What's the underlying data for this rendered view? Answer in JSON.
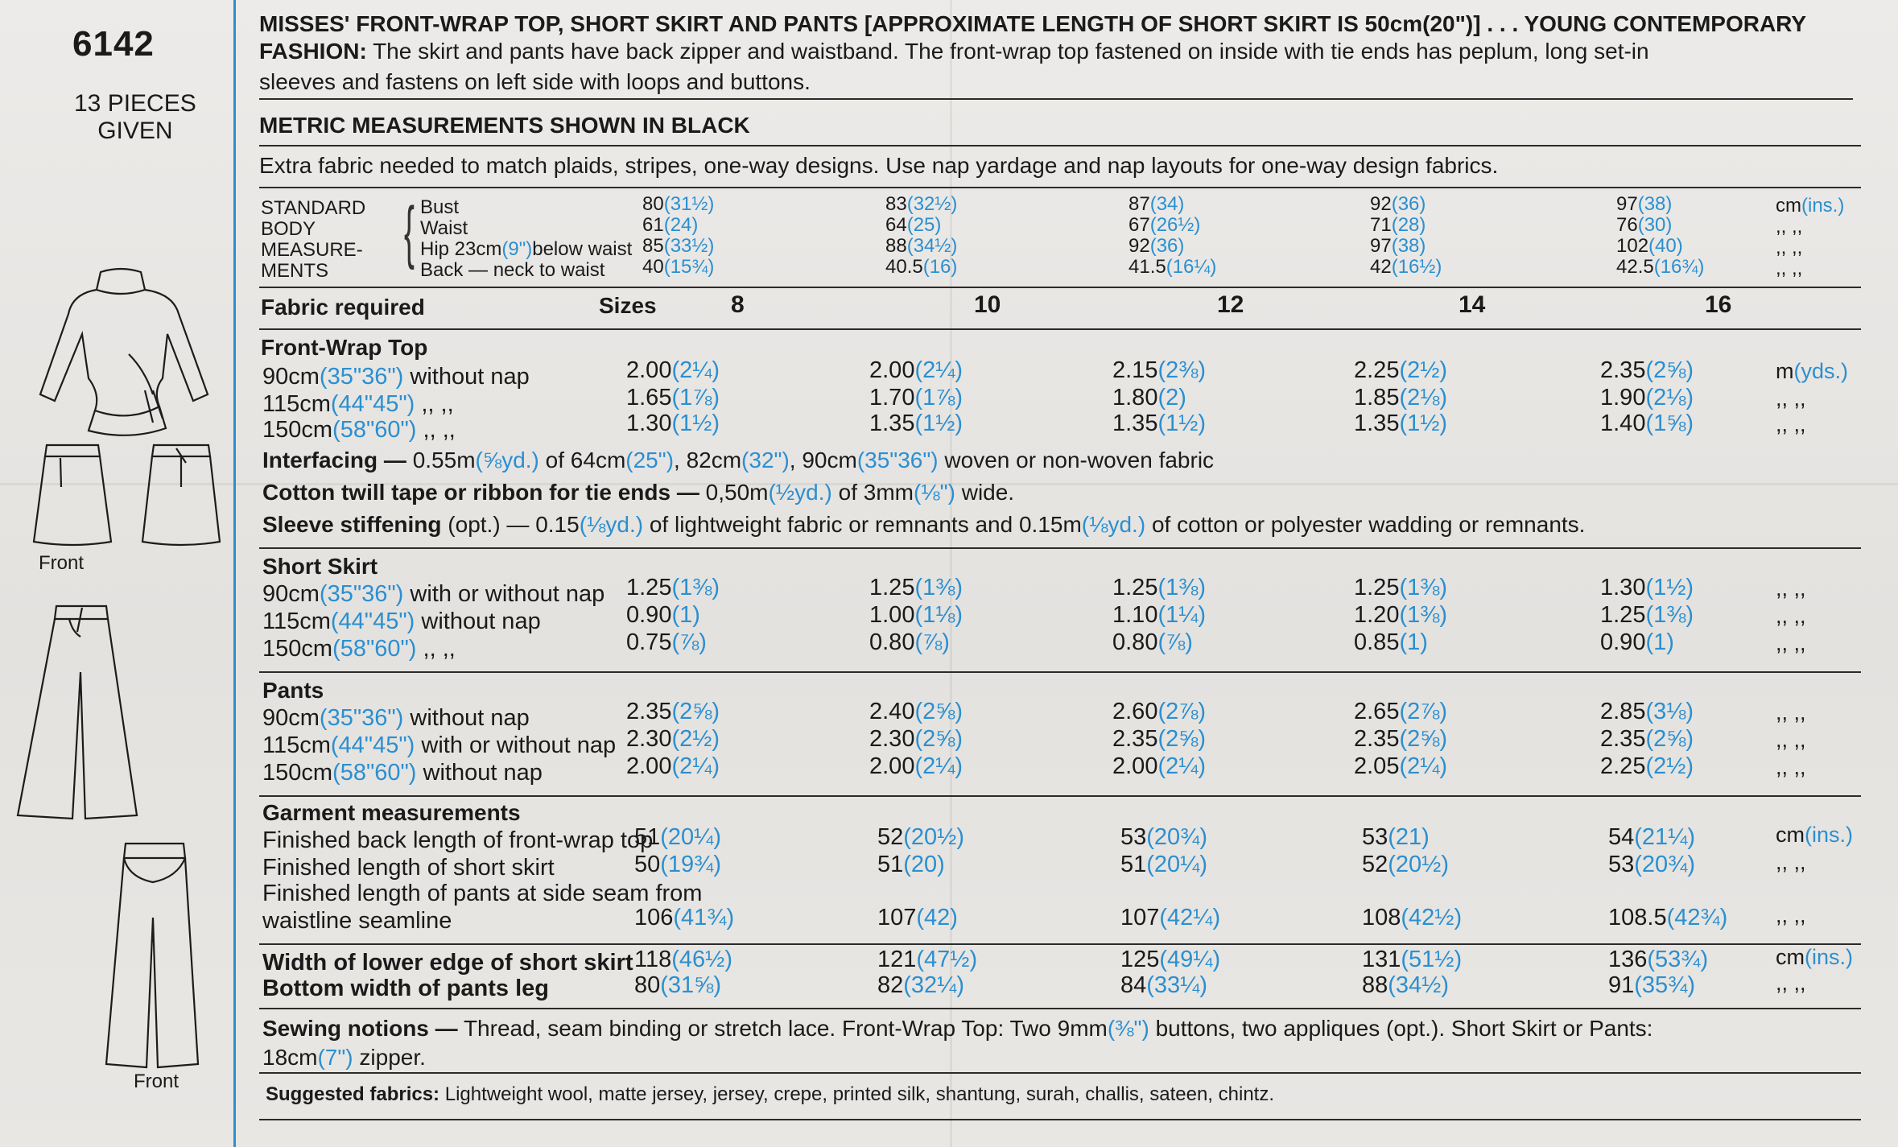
{
  "header": {
    "pattern_number": "6142",
    "pieces_line1": "13 PIECES",
    "pieces_line2": "GIVEN",
    "front_label_1": "Front",
    "front_label_2": "Front"
  },
  "description": {
    "title": "MISSES' FRONT-WRAP TOP, SHORT SKIRT AND PANTS [APPROXIMATE LENGTH OF SHORT SKIRT IS 50cm(20\")] . . . YOUNG CONTEMPORARY",
    "fashion_label": "FASHION:",
    "fashion_text": "The skirt and pants have back zipper and waistband. The front-wrap top fastened on inside with tie ends has peplum, long set-in",
    "fashion_text2": "sleeves and fastens on left side with loops and buttons.",
    "metric_note": "METRIC MEASUREMENTS SHOWN IN BLACK",
    "extra_fabric": "Extra fabric needed to match plaids, stripes, one-way designs. Use nap yardage and nap layouts for one-way design fabrics."
  },
  "body_measurements": {
    "label_lines": [
      "STANDARD",
      "BODY",
      "MEASURE-",
      "MENTS"
    ],
    "rows": [
      {
        "label": "Bust",
        "values": [
          [
            "80",
            "(31½)"
          ],
          [
            "83",
            "(32½)"
          ],
          [
            "87",
            "(34)"
          ],
          [
            "92",
            "(36)"
          ],
          [
            "97",
            "(38)"
          ]
        ],
        "unit": "cm",
        "unit_alt": "(ins.)"
      },
      {
        "label": "Waist",
        "values": [
          [
            "61",
            "(24)"
          ],
          [
            "64",
            "(25)"
          ],
          [
            "67",
            "(26½)"
          ],
          [
            "71",
            "(28)"
          ],
          [
            "76",
            "(30)"
          ]
        ],
        "unit": ",,  ,,",
        "unit_alt": ""
      },
      {
        "label": "Hip 23cm",
        "label_alt": "(9\")",
        "label_rest": "below waist",
        "values": [
          [
            "85",
            "(33½)"
          ],
          [
            "88",
            "(34½)"
          ],
          [
            "92",
            "(36)"
          ],
          [
            "97",
            "(38)"
          ],
          [
            "102",
            "(40)"
          ]
        ],
        "unit": ",,  ,,",
        "unit_alt": ""
      },
      {
        "label": "Back — neck to waist",
        "values": [
          [
            "40",
            "(15¾)"
          ],
          [
            "40.5",
            "(16)"
          ],
          [
            "41.5",
            "(16¼)"
          ],
          [
            "42",
            "(16½)"
          ],
          [
            "42.5",
            "(16¾)"
          ]
        ],
        "unit": ",,  ,,",
        "unit_alt": ""
      }
    ]
  },
  "sizes_header": {
    "fabric_required": "Fabric required",
    "sizes": "Sizes",
    "values": [
      "8",
      "10",
      "12",
      "14",
      "16"
    ]
  },
  "front_wrap_top": {
    "title": "Front-Wrap Top",
    "rows": [
      {
        "w": "90cm",
        "w_alt": "(35\"36\")",
        "nap": "without nap",
        "values": [
          [
            "2.00",
            "(2¼)"
          ],
          [
            "2.00",
            "(2¼)"
          ],
          [
            "2.15",
            "(2⅜)"
          ],
          [
            "2.25",
            "(2½)"
          ],
          [
            "2.35",
            "(2⅝)"
          ]
        ],
        "unit": "m",
        "unit_alt": "(yds.)"
      },
      {
        "w": "115cm",
        "w_alt": "(44\"45\")",
        "nap": ",,        ,,",
        "values": [
          [
            "1.65",
            "(1⅞)"
          ],
          [
            "1.70",
            "(1⅞)"
          ],
          [
            "1.80",
            "(2)"
          ],
          [
            "1.85",
            "(2⅛)"
          ],
          [
            "1.90",
            "(2⅛)"
          ]
        ],
        "unit": ",,  ,,",
        "unit_alt": ""
      },
      {
        "w": "150cm",
        "w_alt": "(58\"60\")",
        "nap": ",,        ,,",
        "values": [
          [
            "1.30",
            "(1½)"
          ],
          [
            "1.35",
            "(1½)"
          ],
          [
            "1.35",
            "(1½)"
          ],
          [
            "1.35",
            "(1½)"
          ],
          [
            "1.40",
            "(1⅝)"
          ]
        ],
        "unit": ",,  ,,",
        "unit_alt": ""
      }
    ]
  },
  "notes": {
    "interfacing_label": "Interfacing —",
    "interfacing_text": "0.55m",
    "interfacing_alt": "(⅝yd.)",
    "interfacing_rest": "of 64cm",
    "interfacing_alt2": "(25\")",
    "interfacing_rest2": ", 82cm",
    "interfacing_alt3": "(32\")",
    "interfacing_rest3": ", 90cm",
    "interfacing_alt4": "(35\"36\")",
    "interfacing_rest4": "woven or non-woven fabric",
    "cotton_label": "Cotton twill tape or ribbon for tie ends —",
    "cotton_text": "0,50m",
    "cotton_alt": "(½yd.)",
    "cotton_rest": "of 3mm",
    "cotton_alt2": "(⅛\")",
    "cotton_rest2": "wide.",
    "sleeve_label": "Sleeve stiffening",
    "sleeve_text": "(opt.) — 0.15",
    "sleeve_alt": "(⅛yd.)",
    "sleeve_rest": "of lightweight fabric or remnants and 0.15m",
    "sleeve_alt2": "(⅛yd.)",
    "sleeve_rest2": "of cotton or polyester wadding or remnants."
  },
  "short_skirt": {
    "title": "Short Skirt",
    "rows": [
      {
        "w": "90cm",
        "w_alt": "(35\"36\")",
        "nap": "with or without nap",
        "values": [
          [
            "1.25",
            "(1⅜)"
          ],
          [
            "1.25",
            "(1⅜)"
          ],
          [
            "1.25",
            "(1⅜)"
          ],
          [
            "1.25",
            "(1⅜)"
          ],
          [
            "1.30",
            "(1½)"
          ]
        ],
        "unit": ",,  ,,"
      },
      {
        "w": "115cm",
        "w_alt": "(44\"45\")",
        "nap": "without nap",
        "values": [
          [
            "0.90",
            "(1)"
          ],
          [
            "1.00",
            "(1⅛)"
          ],
          [
            "1.10",
            "(1¼)"
          ],
          [
            "1.20",
            "(1⅜)"
          ],
          [
            "1.25",
            "(1⅜)"
          ]
        ],
        "unit": ",,  ,,"
      },
      {
        "w": "150cm",
        "w_alt": "(58\"60\")",
        "nap": ",,        ,,",
        "values": [
          [
            "0.75",
            "(⅞)"
          ],
          [
            "0.80",
            "(⅞)"
          ],
          [
            "0.80",
            "(⅞)"
          ],
          [
            "0.85",
            "(1)"
          ],
          [
            "0.90",
            "(1)"
          ]
        ],
        "unit": ",,  ,,"
      }
    ]
  },
  "pants": {
    "title": "Pants",
    "rows": [
      {
        "w": "90cm",
        "w_alt": "(35\"36\")",
        "nap": "without nap",
        "values": [
          [
            "2.35",
            "(2⅝)"
          ],
          [
            "2.40",
            "(2⅝)"
          ],
          [
            "2.60",
            "(2⅞)"
          ],
          [
            "2.65",
            "(2⅞)"
          ],
          [
            "2.85",
            "(3⅛)"
          ]
        ],
        "unit": ",,  ,,"
      },
      {
        "w": "115cm",
        "w_alt": "(44\"45\")",
        "nap": "with or without nap",
        "values": [
          [
            "2.30",
            "(2½)"
          ],
          [
            "2.30",
            "(2⅝)"
          ],
          [
            "2.35",
            "(2⅝)"
          ],
          [
            "2.35",
            "(2⅝)"
          ],
          [
            "2.35",
            "(2⅝)"
          ]
        ],
        "unit": ",,  ,,"
      },
      {
        "w": "150cm",
        "w_alt": "(58\"60\")",
        "nap": "without nap",
        "values": [
          [
            "2.00",
            "(2¼)"
          ],
          [
            "2.00",
            "(2¼)"
          ],
          [
            "2.00",
            "(2¼)"
          ],
          [
            "2.05",
            "(2¼)"
          ],
          [
            "2.25",
            "(2½)"
          ]
        ],
        "unit": ",,  ,,"
      }
    ]
  },
  "garment_measurements": {
    "title": "Garment measurements",
    "rows": [
      {
        "label": "Finished back length of front-wrap top",
        "values": [
          [
            "51",
            "(20¼)"
          ],
          [
            "52",
            "(20½)"
          ],
          [
            "53",
            "(20¾)"
          ],
          [
            "53",
            "(21)"
          ],
          [
            "54",
            "(21¼)"
          ]
        ],
        "unit": "cm",
        "unit_alt": "(ins.)"
      },
      {
        "label": "Finished length of short skirt",
        "values": [
          [
            "50",
            "(19¾)"
          ],
          [
            "51",
            "(20)"
          ],
          [
            "51",
            "(20¼)"
          ],
          [
            "52",
            "(20½)"
          ],
          [
            "53",
            "(20¾)"
          ]
        ],
        "unit": ",,  ,,",
        "unit_alt": ""
      },
      {
        "label": "Finished length of pants at side seam from",
        "values": null,
        "unit": "",
        "unit_alt": ""
      },
      {
        "label": "waistline seamline",
        "values": [
          [
            "106",
            "(41¾)"
          ],
          [
            "107",
            "(42)"
          ],
          [
            "107",
            "(42¼)"
          ],
          [
            "108",
            "(42½)"
          ],
          [
            "108.5",
            "(42¾)"
          ]
        ],
        "unit": ",,  ,,",
        "unit_alt": ""
      }
    ]
  },
  "widths": {
    "rows": [
      {
        "label": "Width of lower edge of short skirt",
        "values": [
          [
            "118",
            "(46½)"
          ],
          [
            "121",
            "(47½)"
          ],
          [
            "125",
            "(49¼)"
          ],
          [
            "131",
            "(51½)"
          ],
          [
            "136",
            "(53¾)"
          ]
        ],
        "unit": "cm",
        "unit_alt": "(ins.)"
      },
      {
        "label": "Bottom width of pants leg",
        "values": [
          [
            "80",
            "(31⅝)"
          ],
          [
            "82",
            "(32¼)"
          ],
          [
            "84",
            "(33¼)"
          ],
          [
            "88",
            "(34½)"
          ],
          [
            "91",
            "(35¾)"
          ]
        ],
        "unit": ",,  ,,",
        "unit_alt": ""
      }
    ]
  },
  "sewing_notions": {
    "label": "Sewing notions —",
    "text": "Thread, seam binding or stretch lace. Front-Wrap Top: Two 9mm",
    "alt": "(⅜\")",
    "rest": "buttons, two appliques (opt.). Short Skirt or Pants:",
    "line2": "18cm",
    "line2_alt": "(7\")",
    "line2_rest": "zipper."
  },
  "suggested_fabrics": {
    "label": "Suggested fabrics:",
    "text": "Lightweight wool, matte jersey, jersey, crepe, printed silk, shantung, surah, challis, sateen, chintz."
  },
  "colors": {
    "accent_blue": "#2b8fd0",
    "ink": "#1a1a1a",
    "paper": "#e9e6e2"
  }
}
